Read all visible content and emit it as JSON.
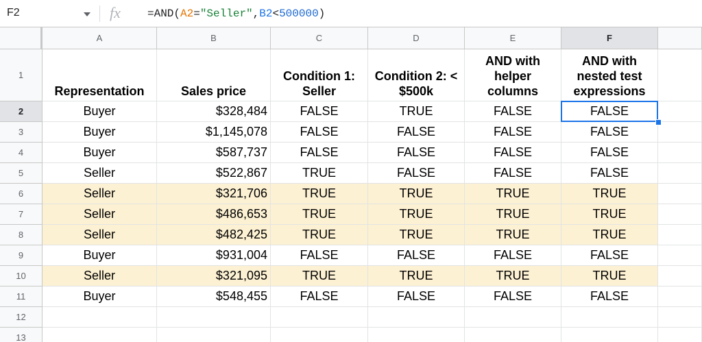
{
  "formula_bar": {
    "name_box": "F2",
    "icon": "fx",
    "formula_tokens": [
      {
        "text": "=AND(",
        "color": "#202124"
      },
      {
        "text": "A2",
        "color": "#e37400"
      },
      {
        "text": "=",
        "color": "#202124"
      },
      {
        "text": "\"Seller\"",
        "color": "#188038"
      },
      {
        "text": ",",
        "color": "#202124"
      },
      {
        "text": "B2",
        "color": "#1a73e8"
      },
      {
        "text": "<",
        "color": "#202124"
      },
      {
        "text": "500000",
        "color": "#1967d2"
      },
      {
        "text": ")",
        "color": "#202124"
      }
    ]
  },
  "columns": [
    "A",
    "B",
    "C",
    "D",
    "E",
    "F"
  ],
  "row_numbers": [
    1,
    2,
    3,
    4,
    5,
    6,
    7,
    8,
    9,
    10,
    11,
    12,
    13
  ],
  "selected_cell": {
    "column_index": 5,
    "row_index": 1
  },
  "highlight_color": "#fdf1d3",
  "table": {
    "header": [
      "Representation",
      "Sales price",
      "Condition 1: Seller",
      "Condition 2: < $500k",
      "AND with helper columns",
      "AND with nested test expressions"
    ],
    "rows": [
      {
        "cells": [
          "Buyer",
          "$328,484",
          "FALSE",
          "TRUE",
          "FALSE",
          "FALSE"
        ],
        "highlight": false
      },
      {
        "cells": [
          "Buyer",
          "$1,145,078",
          "FALSE",
          "FALSE",
          "FALSE",
          "FALSE"
        ],
        "highlight": false
      },
      {
        "cells": [
          "Buyer",
          "$587,737",
          "FALSE",
          "FALSE",
          "FALSE",
          "FALSE"
        ],
        "highlight": false
      },
      {
        "cells": [
          "Seller",
          "$522,867",
          "TRUE",
          "FALSE",
          "FALSE",
          "FALSE"
        ],
        "highlight": false
      },
      {
        "cells": [
          "Seller",
          "$321,706",
          "TRUE",
          "TRUE",
          "TRUE",
          "TRUE"
        ],
        "highlight": true
      },
      {
        "cells": [
          "Seller",
          "$486,653",
          "TRUE",
          "TRUE",
          "TRUE",
          "TRUE"
        ],
        "highlight": true
      },
      {
        "cells": [
          "Seller",
          "$482,425",
          "TRUE",
          "TRUE",
          "TRUE",
          "TRUE"
        ],
        "highlight": true
      },
      {
        "cells": [
          "Buyer",
          "$931,004",
          "FALSE",
          "FALSE",
          "FALSE",
          "FALSE"
        ],
        "highlight": false
      },
      {
        "cells": [
          "Seller",
          "$321,095",
          "TRUE",
          "TRUE",
          "TRUE",
          "TRUE"
        ],
        "highlight": true
      },
      {
        "cells": [
          "Buyer",
          "$548,455",
          "FALSE",
          "FALSE",
          "FALSE",
          "FALSE"
        ],
        "highlight": false
      }
    ]
  }
}
